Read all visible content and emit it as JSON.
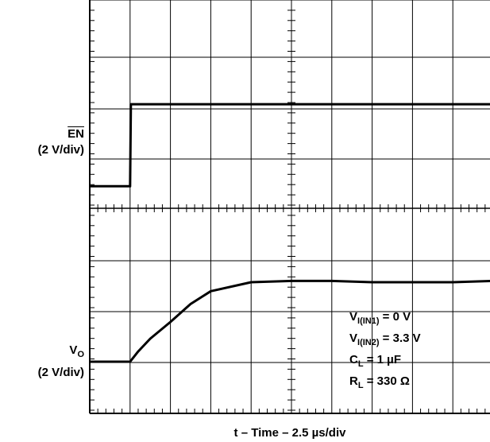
{
  "chart_data": {
    "type": "line",
    "xlabel": "t – Time – 2.5 µs/div",
    "grid": true,
    "panels": [
      {
        "name": "EN",
        "scale": "(2 V/div)",
        "x_div": [
          0,
          1.0,
          1.02,
          10
        ],
        "y_div": [
          -1.0,
          -1.0,
          2.2,
          2.2
        ]
      },
      {
        "name": "VO",
        "scale": "(2 V/div)",
        "x_div": [
          0,
          1.0,
          1.2,
          1.5,
          2.0,
          2.5,
          3.0,
          4.0,
          5.0,
          6.0,
          7.0,
          8.0,
          9.0,
          10
        ],
        "y_div": [
          0,
          0,
          0.4,
          0.9,
          1.55,
          2.25,
          2.75,
          3.1,
          3.15,
          3.15,
          3.1,
          3.1,
          3.1,
          3.15
        ]
      }
    ],
    "conditions": [
      {
        "sym": "V",
        "sub": "I(IN1)",
        "val": " = 0 V"
      },
      {
        "sym": "V",
        "sub": "I(IN2)",
        "val": " = 3.3 V"
      },
      {
        "sym": "C",
        "sub": "L",
        "val": " = 1 µF"
      },
      {
        "sym": "R",
        "sub": "L",
        "val": " = 330 Ω"
      }
    ]
  },
  "labels": {
    "en_name": "EN",
    "en_scale": "(2 V/div)",
    "vo_sym": "V",
    "vo_sub": "O",
    "vo_scale": "(2 V/div)",
    "xlabel": "t – Time – 2.5 µs/div"
  },
  "colors": {
    "trace": "#000000",
    "grid": "#000000",
    "background": "#ffffff"
  }
}
